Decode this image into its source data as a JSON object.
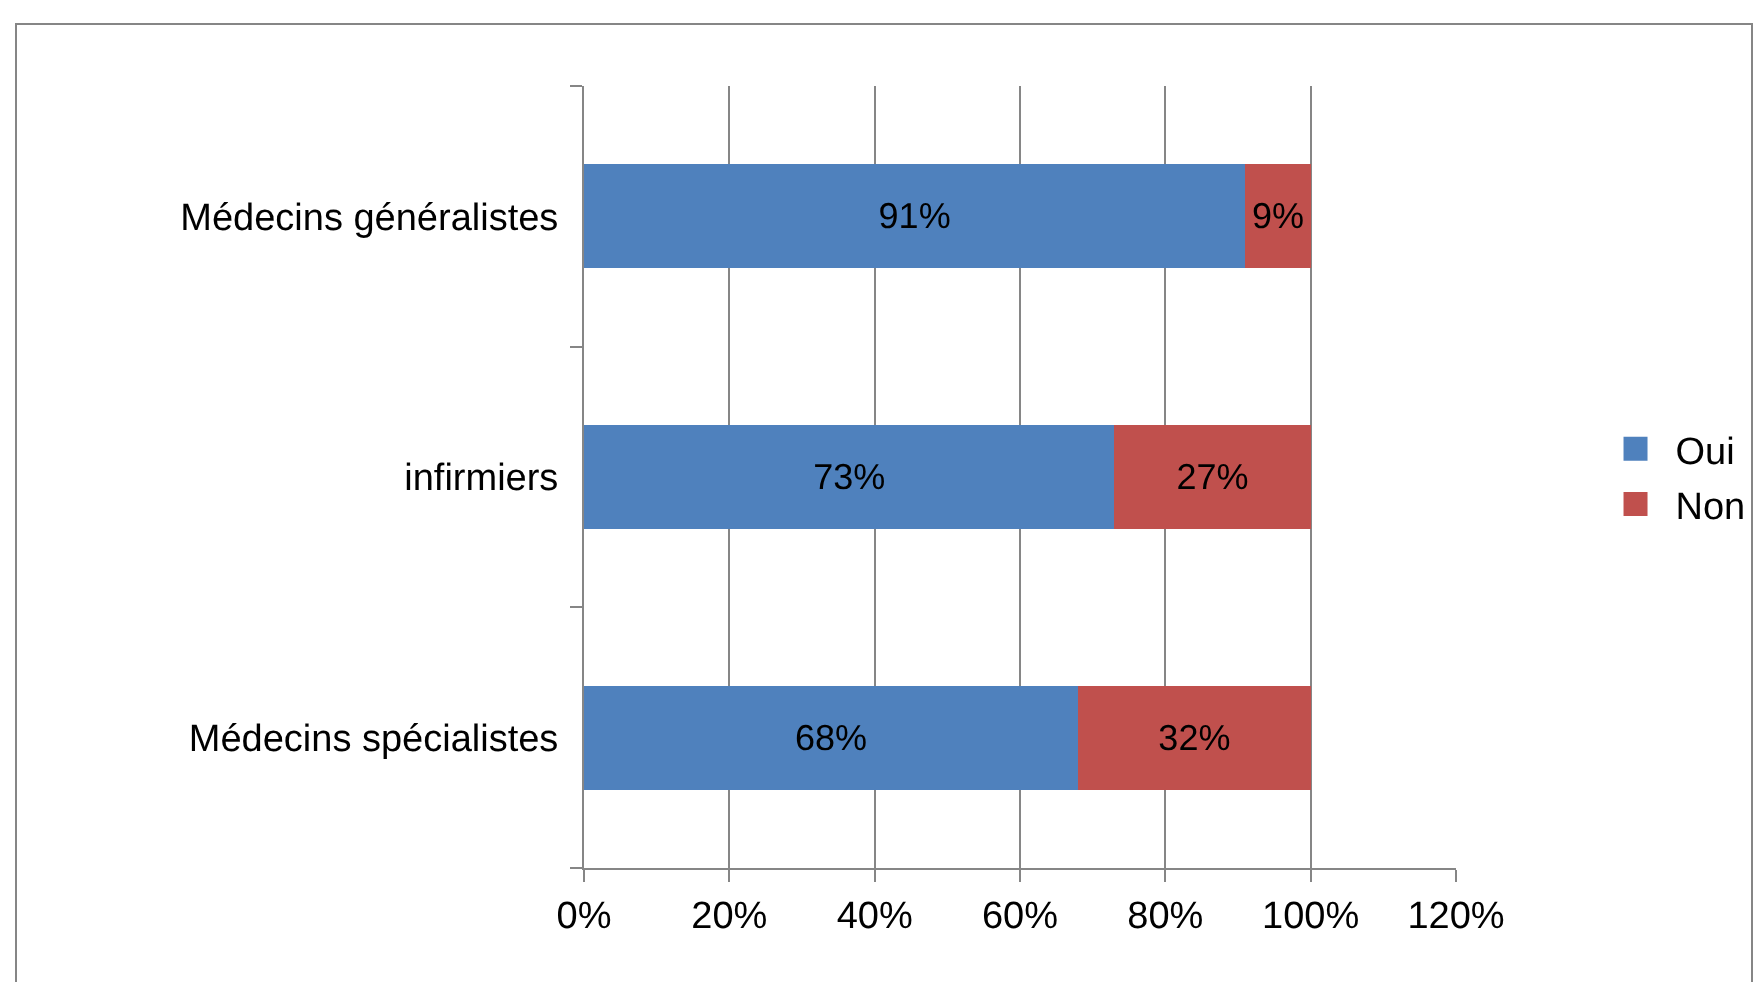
{
  "chart_data": {
    "type": "bar",
    "orientation": "horizontal",
    "stacked": true,
    "categories": [
      "Médecins généralistes",
      "infirmiers",
      "Médecins spécialistes"
    ],
    "series": [
      {
        "name": "Oui",
        "color": "#4f81bd",
        "values": [
          91,
          73,
          68
        ],
        "value_labels": [
          "91%",
          "73%",
          "68%"
        ]
      },
      {
        "name": "Non",
        "color": "#c0504d",
        "values": [
          9,
          27,
          32
        ],
        "value_labels": [
          "9%",
          "27%",
          "32%"
        ]
      }
    ],
    "xlim": [
      0,
      120
    ],
    "xticks": [
      {
        "value": 0,
        "label": "0%"
      },
      {
        "value": 20,
        "label": "20%"
      },
      {
        "value": 40,
        "label": "40%"
      },
      {
        "value": 60,
        "label": "60%"
      },
      {
        "value": 80,
        "label": "80%"
      },
      {
        "value": 100,
        "label": "100%"
      },
      {
        "value": 120,
        "label": "120%"
      }
    ],
    "grid": "x",
    "legend": "right"
  }
}
